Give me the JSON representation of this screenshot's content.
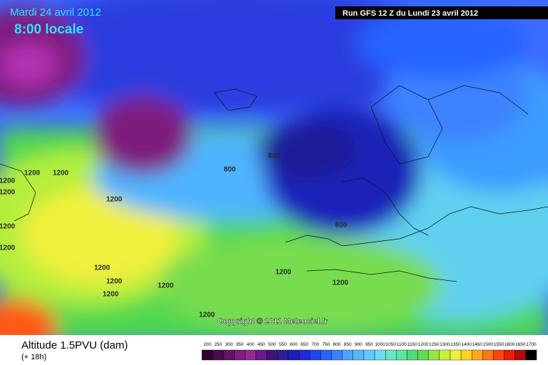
{
  "header": {
    "date": "Mardi 24 avril 2012",
    "time": "8:00 locale",
    "run": "Run GFS 12 Z du Lundi 23 avril 2012"
  },
  "map": {
    "contour_labels": [
      "1200",
      "1200",
      "1200",
      "1200",
      "1200",
      "1200",
      "1200",
      "1200",
      "1200",
      "1200",
      "1200",
      "1200",
      "1200",
      "1200",
      "800",
      "800",
      "800"
    ],
    "copyright": "Copyright © 2011 Meteociel.fr"
  },
  "footer": {
    "title": "Altitude 1.5PVU (dam)",
    "lead": "(+ 18h)"
  },
  "legend": {
    "levels": [
      200,
      250,
      300,
      350,
      400,
      450,
      500,
      550,
      600,
      650,
      700,
      750,
      800,
      850,
      900,
      950,
      1000,
      1050,
      1100,
      1150,
      1200,
      1250,
      1300,
      1350,
      1400,
      1450,
      1500,
      1550,
      1600,
      1650,
      1700
    ],
    "colors": [
      "#300030",
      "#4a0a4a",
      "#641464",
      "#7e1e7e",
      "#962896",
      "#6a1a8a",
      "#3c1478",
      "#2a1e96",
      "#1e1eb4",
      "#1e28dc",
      "#1e46f0",
      "#2864ff",
      "#3c82ff",
      "#50a0ff",
      "#5ab4ff",
      "#64c8ff",
      "#6edcf0",
      "#64e6c8",
      "#5ae6a0",
      "#50dc78",
      "#64dc50",
      "#96e646",
      "#c8f03c",
      "#f0f03c",
      "#ffd228",
      "#ffaa1e",
      "#ff7814",
      "#ff460a",
      "#e61e0a",
      "#b40a0a",
      "#000000"
    ]
  }
}
